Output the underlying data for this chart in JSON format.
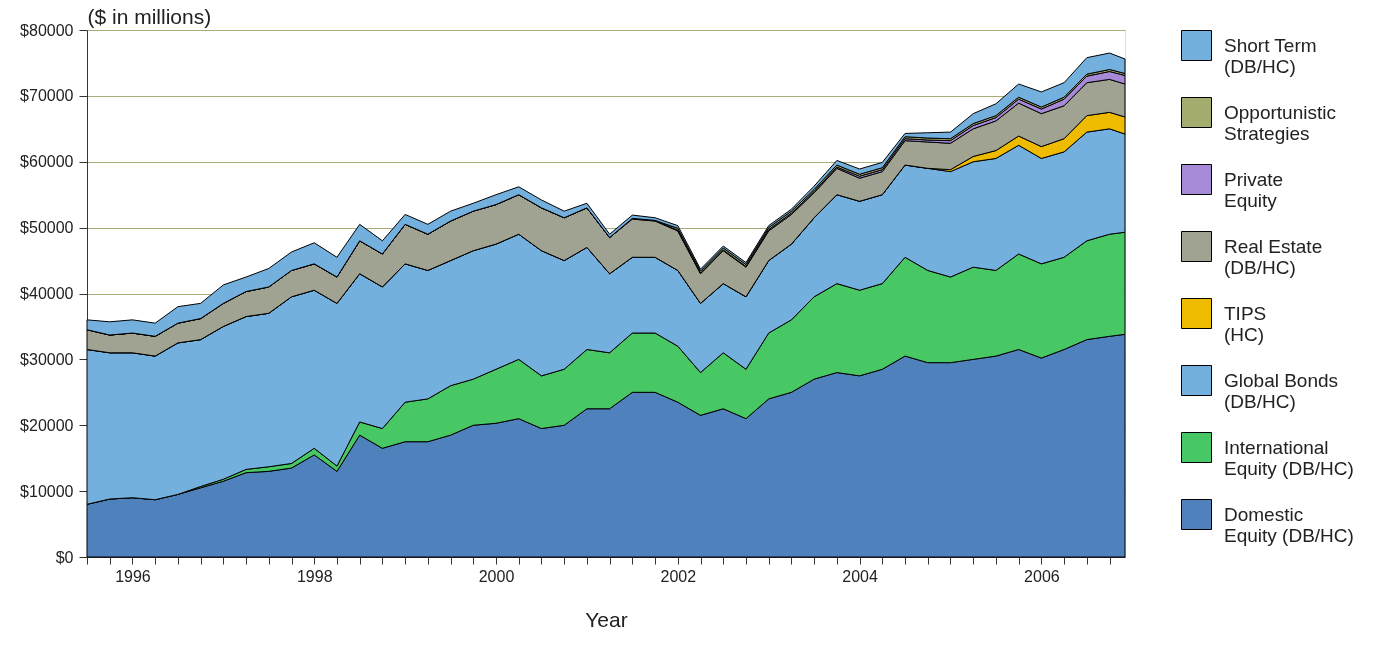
{
  "chart_data": {
    "type": "area",
    "stacked": true,
    "ylabel": "($ in millions)",
    "xlabel": "Year",
    "x": [
      1995.5,
      1995.75,
      1996,
      1996.25,
      1996.5,
      1996.75,
      1997,
      1997.25,
      1997.5,
      1997.75,
      1998,
      1998.25,
      1998.5,
      1998.75,
      1999,
      1999.25,
      1999.5,
      1999.75,
      2000,
      2000.25,
      2000.5,
      2000.75,
      2001,
      2001.25,
      2001.5,
      2001.75,
      2002,
      2002.25,
      2002.5,
      2002.75,
      2003,
      2003.25,
      2003.5,
      2003.75,
      2004,
      2004.25,
      2004.5,
      2004.75,
      2005,
      2005.25,
      2005.5,
      2005.75,
      2006,
      2006.25,
      2006.5,
      2006.75,
      2006.92
    ],
    "xlim": [
      1995.5,
      2006.92
    ],
    "xticks": [
      {
        "value": 1995.5,
        "label": null
      },
      {
        "value": 1995.75,
        "label": null
      },
      1996,
      {
        "value": 1996.25,
        "label": null
      },
      {
        "value": 1996.5,
        "label": null
      },
      {
        "value": 1996.75,
        "label": null
      },
      {
        "value": 1997,
        "label": null
      },
      {
        "value": 1997.25,
        "label": null
      },
      {
        "value": 1997.5,
        "label": null
      },
      {
        "value": 1997.75,
        "label": null
      },
      1998,
      {
        "value": 1998.25,
        "label": null
      },
      {
        "value": 1998.5,
        "label": null
      },
      {
        "value": 1998.75,
        "label": null
      },
      {
        "value": 1999,
        "label": null
      },
      {
        "value": 1999.25,
        "label": null
      },
      {
        "value": 1999.5,
        "label": null
      },
      {
        "value": 1999.75,
        "label": null
      },
      2000,
      {
        "value": 2000.25,
        "label": null
      },
      {
        "value": 2000.5,
        "label": null
      },
      {
        "value": 2000.75,
        "label": null
      },
      {
        "value": 2001,
        "label": null
      },
      {
        "value": 2001.25,
        "label": null
      },
      {
        "value": 2001.5,
        "label": null
      },
      {
        "value": 2001.75,
        "label": null
      },
      2002,
      {
        "value": 2002.25,
        "label": null
      },
      {
        "value": 2002.5,
        "label": null
      },
      {
        "value": 2002.75,
        "label": null
      },
      {
        "value": 2003,
        "label": null
      },
      {
        "value": 2003.25,
        "label": null
      },
      {
        "value": 2003.5,
        "label": null
      },
      {
        "value": 2003.75,
        "label": null
      },
      2004,
      {
        "value": 2004.25,
        "label": null
      },
      {
        "value": 2004.5,
        "label": null
      },
      {
        "value": 2004.75,
        "label": null
      },
      {
        "value": 2005,
        "label": null
      },
      {
        "value": 2005.25,
        "label": null
      },
      {
        "value": 2005.5,
        "label": null
      },
      {
        "value": 2005.75,
        "label": null
      },
      2006,
      {
        "value": 2006.25,
        "label": null
      },
      {
        "value": 2006.5,
        "label": null
      },
      {
        "value": 2006.75,
        "label": null
      }
    ],
    "ylim": [
      0,
      80000
    ],
    "yticks": [
      {
        "value": 0,
        "label": "$0"
      },
      {
        "value": 10000,
        "label": "$10000"
      },
      {
        "value": 20000,
        "label": "$20000"
      },
      {
        "value": 30000,
        "label": "$30000"
      },
      {
        "value": 40000,
        "label": "$40000"
      },
      {
        "value": 50000,
        "label": "$50000"
      },
      {
        "value": 60000,
        "label": "$60000"
      },
      {
        "value": 70000,
        "label": "$70000"
      },
      {
        "value": 80000,
        "label": "$80000"
      }
    ],
    "grid": "y",
    "legend": "right",
    "series": [
      {
        "name": "Domestic\nEquity (DB/HC)",
        "color": "#4f81bd",
        "values": [
          8000,
          8800,
          9000,
          8700,
          9500,
          10500,
          11500,
          12800,
          13000,
          13500,
          15500,
          13000,
          18500,
          16500,
          17500,
          17500,
          18500,
          20000,
          20300,
          21000,
          19500,
          20000,
          22500,
          22500,
          25000,
          25000,
          23500,
          21500,
          22500,
          21000,
          24000,
          25000,
          27000,
          28000,
          27500,
          28500,
          30500,
          29500,
          29500,
          30000,
          30500,
          31500,
          30200,
          31500,
          33000,
          33500,
          33800
        ]
      },
      {
        "name": "International\nEquity (DB/HC)",
        "color": "#48c864",
        "values": [
          0,
          0,
          0,
          0,
          0,
          200,
          300,
          500,
          700,
          700,
          1000,
          800,
          2000,
          3000,
          6000,
          6500,
          7500,
          7000,
          8200,
          9000,
          8000,
          8500,
          9000,
          8500,
          9000,
          9000,
          8500,
          6500,
          8500,
          7500,
          10000,
          11000,
          12500,
          13500,
          13000,
          13000,
          15000,
          14000,
          13000,
          14000,
          13000,
          14500,
          14300,
          14000,
          15000,
          15500,
          15500
        ]
      },
      {
        "name": "Global Bonds\n(DB/HC)",
        "color": "#74b0dd",
        "values": [
          23500,
          22200,
          22000,
          21800,
          23000,
          22300,
          23200,
          23200,
          23300,
          25300,
          24000,
          24700,
          22500,
          21500,
          21000,
          19500,
          19000,
          19500,
          19000,
          19000,
          19000,
          16500,
          15500,
          12000,
          11500,
          11500,
          11500,
          10500,
          10500,
          11000,
          11000,
          11500,
          12000,
          13500,
          13500,
          13500,
          14000,
          15500,
          16000,
          16000,
          17000,
          16500,
          16000,
          16000,
          16500,
          16000,
          14900
        ]
      },
      {
        "name": "TIPS\n(HC)",
        "color": "#eebb00",
        "values": [
          0,
          0,
          0,
          0,
          0,
          0,
          0,
          0,
          0,
          0,
          0,
          0,
          0,
          0,
          0,
          0,
          0,
          0,
          0,
          0,
          0,
          0,
          0,
          0,
          0,
          0,
          0,
          0,
          0,
          0,
          0,
          0,
          0,
          0,
          0,
          0,
          0,
          0,
          300,
          800,
          1200,
          1400,
          1800,
          2000,
          2500,
          2500,
          2600
        ]
      },
      {
        "name": "Real Estate\n(DB/HC)",
        "color": "#a1a392",
        "values": [
          3000,
          2700,
          3000,
          3000,
          3000,
          3200,
          3500,
          3800,
          4000,
          4000,
          4000,
          4000,
          5000,
          5000,
          6000,
          5500,
          6000,
          6000,
          6000,
          6000,
          6500,
          6500,
          6000,
          5500,
          5800,
          5500,
          6000,
          4500,
          5000,
          4500,
          4500,
          4500,
          3800,
          4000,
          3500,
          3500,
          3700,
          4000,
          4000,
          4200,
          4500,
          5000,
          5000,
          5000,
          5000,
          5000,
          5000
        ]
      },
      {
        "name": "Private\nEquity",
        "color": "#a68ad8",
        "values": [
          0,
          0,
          0,
          0,
          0,
          0,
          0,
          0,
          0,
          0,
          0,
          0,
          0,
          0,
          0,
          0,
          0,
          0,
          0,
          0,
          0,
          0,
          0,
          0,
          100,
          100,
          100,
          100,
          100,
          100,
          200,
          200,
          200,
          200,
          300,
          300,
          300,
          300,
          400,
          500,
          500,
          600,
          700,
          1000,
          1000,
          1200,
          1300
        ]
      },
      {
        "name": "Opportunistic\nStrategies",
        "color": "#a5ad6e",
        "values": [
          0,
          0,
          0,
          0,
          0,
          0,
          0,
          0,
          0,
          0,
          0,
          0,
          0,
          0,
          0,
          0,
          0,
          0,
          0,
          0,
          0,
          0,
          0,
          0,
          0,
          0,
          300,
          300,
          300,
          300,
          300,
          300,
          300,
          300,
          300,
          300,
          300,
          300,
          300,
          300,
          300,
          300,
          300,
          300,
          300,
          300,
          300
        ]
      },
      {
        "name": "Short Term\n(DB/HC)",
        "color": "#74b0dd",
        "values": [
          1500,
          2000,
          2000,
          2000,
          2500,
          2300,
          2800,
          2200,
          2800,
          2800,
          3200,
          3000,
          2500,
          2000,
          1500,
          1500,
          1500,
          1200,
          1500,
          1200,
          1200,
          1000,
          700,
          500,
          500,
          400,
          400,
          300,
          300,
          300,
          300,
          300,
          500,
          700,
          800,
          800,
          500,
          800,
          1000,
          1500,
          1800,
          2000,
          2300,
          2200,
          2500,
          2500,
          2200
        ]
      }
    ]
  }
}
